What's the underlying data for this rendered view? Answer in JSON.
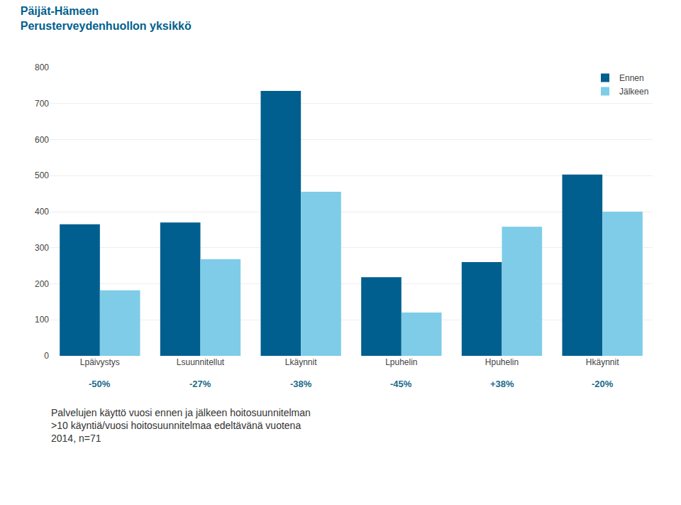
{
  "chart_data": {
    "type": "bar",
    "title": [
      "Päijät-Hämeen",
      "Perusterveydenhuollon yksikkö"
    ],
    "subtitle": [
      "Palvelujen käyttö vuosi ennen ja jälkeen hoitosuunnitelman",
      ">10 käyntiä/vuosi hoitosuunnitelmaa edeltävänä vuotena",
      "2014, n=71"
    ],
    "categories": [
      "Lpäivystys",
      "Lsuunnitellut",
      "Lkäynnit",
      "Lpuhelin",
      "Hpuhelin",
      "Hkäynnit"
    ],
    "series": [
      {
        "name": "Ennen",
        "color": "#005f8e",
        "values": [
          365,
          370,
          735,
          218,
          260,
          503
        ]
      },
      {
        "name": "Jälkeen",
        "color": "#7ecce8",
        "values": [
          182,
          268,
          455,
          120,
          358,
          400
        ]
      }
    ],
    "annotations": [
      {
        "category": "Lpäivystys",
        "text": "-50%"
      },
      {
        "category": "Lsuunnitellut",
        "text": "-27%"
      },
      {
        "category": "Lkäynnit",
        "text": "-38%"
      },
      {
        "category": "Lpuhelin",
        "text": "-45%"
      },
      {
        "category": "Hpuhelin",
        "text": "+38%"
      },
      {
        "category": "Hkäynnit",
        "text": "-20%"
      }
    ],
    "ylim": [
      0,
      800
    ],
    "yticks": [
      0,
      100,
      200,
      300,
      400,
      500,
      600,
      700,
      800
    ],
    "grid": true,
    "legend": "upper right"
  }
}
